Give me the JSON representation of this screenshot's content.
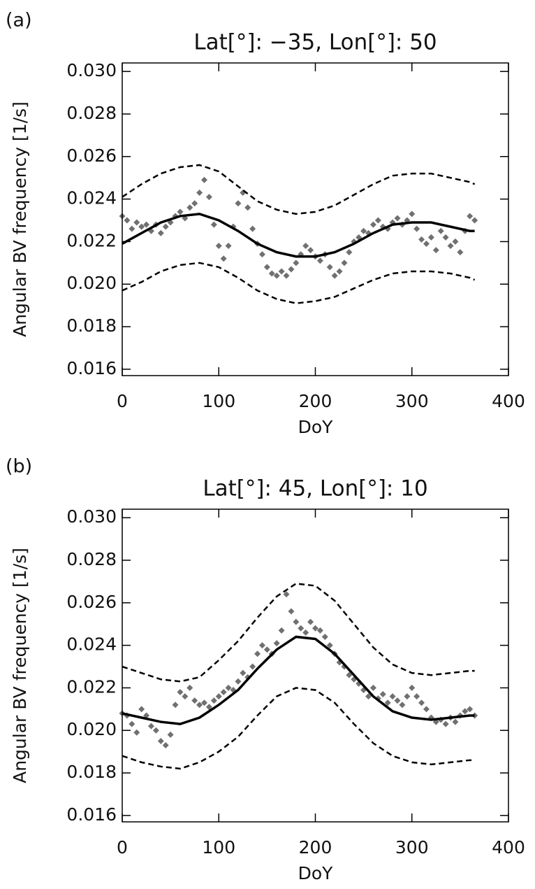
{
  "chart_data": [
    {
      "type": "scatter",
      "panel_label": "(a)",
      "title": "Lat[°]: −35, Lon[°]: 50",
      "x_label": "DoY",
      "y_label": "Angular BV frequency [1/s]",
      "xlim": [
        0,
        400
      ],
      "xticks": [
        0,
        100,
        200,
        300,
        400
      ],
      "ylim": [
        0.0157,
        0.0304
      ],
      "yticks": [
        {
          "value": 0.016,
          "label": "0.016"
        },
        {
          "value": 0.018,
          "label": "0.018"
        },
        {
          "value": 0.02,
          "label": "0.020"
        },
        {
          "value": 0.022,
          "label": "0.022"
        },
        {
          "value": 0.024,
          "label": "0.024"
        },
        {
          "value": 0.026,
          "label": "0.026"
        },
        {
          "value": 0.028,
          "label": "0.028"
        },
        {
          "value": 0.03,
          "label": "0.030"
        }
      ],
      "series": [
        {
          "kind": "points",
          "color": "#707070",
          "x": [
            0,
            5,
            10,
            15,
            20,
            25,
            30,
            35,
            40,
            45,
            50,
            55,
            60,
            65,
            70,
            75,
            80,
            85,
            90,
            95,
            100,
            105,
            110,
            115,
            120,
            125,
            130,
            135,
            140,
            145,
            150,
            155,
            160,
            165,
            170,
            175,
            180,
            185,
            190,
            195,
            200,
            205,
            210,
            215,
            220,
            225,
            230,
            235,
            240,
            245,
            250,
            255,
            260,
            265,
            270,
            275,
            280,
            285,
            290,
            295,
            300,
            305,
            310,
            315,
            320,
            325,
            330,
            335,
            340,
            345,
            350,
            355,
            360,
            365
          ],
          "values": [
            0.0232,
            0.023,
            0.0226,
            0.0229,
            0.0227,
            0.0228,
            0.0225,
            0.0228,
            0.0224,
            0.0227,
            0.0229,
            0.0232,
            0.0234,
            0.0231,
            0.0236,
            0.0238,
            0.0243,
            0.0249,
            0.0241,
            0.0228,
            0.0218,
            0.0212,
            0.0218,
            0.0227,
            0.0238,
            0.0243,
            0.0236,
            0.0226,
            0.0219,
            0.0214,
            0.0208,
            0.0205,
            0.0204,
            0.0206,
            0.0204,
            0.0207,
            0.021,
            0.0214,
            0.0218,
            0.0216,
            0.0213,
            0.0211,
            0.0214,
            0.0208,
            0.0204,
            0.0206,
            0.021,
            0.0215,
            0.022,
            0.0222,
            0.0225,
            0.0224,
            0.0228,
            0.023,
            0.0227,
            0.0226,
            0.0229,
            0.0231,
            0.0228,
            0.023,
            0.0233,
            0.0226,
            0.0221,
            0.0219,
            0.0222,
            0.0216,
            0.0225,
            0.0222,
            0.0218,
            0.022,
            0.0215,
            0.0225,
            0.0232,
            0.023
          ]
        },
        {
          "kind": "line",
          "color": "#000000",
          "dash": false,
          "x": [
            0,
            20,
            40,
            60,
            80,
            100,
            120,
            140,
            160,
            180,
            200,
            220,
            240,
            260,
            280,
            300,
            320,
            340,
            360,
            365
          ],
          "values": [
            0.0219,
            0.0224,
            0.0229,
            0.0232,
            0.0233,
            0.023,
            0.0225,
            0.0219,
            0.0215,
            0.0213,
            0.0213,
            0.0215,
            0.0219,
            0.0224,
            0.0228,
            0.0229,
            0.0229,
            0.0227,
            0.0225,
            0.0225
          ]
        },
        {
          "kind": "line",
          "color": "#000000",
          "dash": true,
          "x": [
            0,
            20,
            40,
            60,
            80,
            100,
            120,
            140,
            160,
            180,
            200,
            220,
            240,
            260,
            280,
            300,
            320,
            340,
            360,
            365
          ],
          "values": [
            0.0241,
            0.0247,
            0.0252,
            0.0255,
            0.0256,
            0.0253,
            0.0246,
            0.0239,
            0.0235,
            0.0233,
            0.0234,
            0.0237,
            0.0242,
            0.0247,
            0.0251,
            0.0252,
            0.0252,
            0.025,
            0.0248,
            0.0247
          ]
        },
        {
          "kind": "line",
          "color": "#000000",
          "dash": true,
          "x": [
            0,
            20,
            40,
            60,
            80,
            100,
            120,
            140,
            160,
            180,
            200,
            220,
            240,
            260,
            280,
            300,
            320,
            340,
            360,
            365
          ],
          "values": [
            0.0197,
            0.0201,
            0.0206,
            0.0209,
            0.021,
            0.0208,
            0.0203,
            0.0197,
            0.0193,
            0.0191,
            0.0192,
            0.0194,
            0.0198,
            0.0202,
            0.0205,
            0.0206,
            0.0206,
            0.0205,
            0.0203,
            0.0202
          ]
        }
      ]
    },
    {
      "type": "scatter",
      "panel_label": "(b)",
      "title": "Lat[°]: 45, Lon[°]: 10",
      "x_label": "DoY",
      "y_label": "Angular BV frequency [1/s]",
      "xlim": [
        0,
        400
      ],
      "xticks": [
        0,
        100,
        200,
        300,
        400
      ],
      "ylim": [
        0.0157,
        0.0304
      ],
      "yticks": [
        {
          "value": 0.016,
          "label": "0.016"
        },
        {
          "value": 0.018,
          "label": "0.018"
        },
        {
          "value": 0.02,
          "label": "0.020"
        },
        {
          "value": 0.022,
          "label": "0.022"
        },
        {
          "value": 0.024,
          "label": "0.024"
        },
        {
          "value": 0.026,
          "label": "0.026"
        },
        {
          "value": 0.028,
          "label": "0.028"
        },
        {
          "value": 0.03,
          "label": "0.030"
        }
      ],
      "series": [
        {
          "kind": "points",
          "color": "#707070",
          "x": [
            0,
            5,
            10,
            15,
            20,
            25,
            30,
            35,
            40,
            45,
            50,
            55,
            60,
            65,
            70,
            75,
            80,
            85,
            90,
            95,
            100,
            105,
            110,
            115,
            120,
            125,
            130,
            135,
            140,
            145,
            150,
            155,
            160,
            165,
            170,
            175,
            180,
            185,
            190,
            195,
            200,
            205,
            210,
            215,
            220,
            225,
            230,
            235,
            240,
            245,
            250,
            255,
            260,
            265,
            270,
            275,
            280,
            285,
            290,
            295,
            300,
            305,
            310,
            315,
            320,
            325,
            330,
            335,
            340,
            345,
            350,
            355,
            360,
            365
          ],
          "values": [
            0.0208,
            0.0207,
            0.0203,
            0.0199,
            0.021,
            0.0207,
            0.0202,
            0.02,
            0.0195,
            0.0193,
            0.0198,
            0.0212,
            0.0218,
            0.0216,
            0.022,
            0.0214,
            0.0212,
            0.0213,
            0.0211,
            0.0214,
            0.0216,
            0.0218,
            0.022,
            0.0219,
            0.0223,
            0.0227,
            0.0225,
            0.023,
            0.0236,
            0.024,
            0.0238,
            0.0236,
            0.0241,
            0.0247,
            0.0264,
            0.0256,
            0.0251,
            0.0248,
            0.0246,
            0.0251,
            0.0248,
            0.0247,
            0.0244,
            0.024,
            0.0236,
            0.0232,
            0.023,
            0.0226,
            0.0224,
            0.0222,
            0.0219,
            0.0216,
            0.022,
            0.0215,
            0.0217,
            0.0213,
            0.0216,
            0.0214,
            0.0212,
            0.0216,
            0.022,
            0.0216,
            0.0213,
            0.021,
            0.0206,
            0.0204,
            0.0205,
            0.0203,
            0.0206,
            0.0204,
            0.0207,
            0.0209,
            0.021,
            0.0207
          ]
        },
        {
          "kind": "line",
          "color": "#000000",
          "dash": false,
          "x": [
            0,
            20,
            40,
            60,
            80,
            100,
            120,
            140,
            160,
            180,
            200,
            220,
            240,
            260,
            280,
            300,
            320,
            340,
            360,
            365
          ],
          "values": [
            0.0208,
            0.0206,
            0.0204,
            0.0203,
            0.0206,
            0.0212,
            0.0219,
            0.0229,
            0.0238,
            0.0244,
            0.0243,
            0.0236,
            0.0226,
            0.0216,
            0.0209,
            0.0206,
            0.0205,
            0.0206,
            0.0207,
            0.0207
          ]
        },
        {
          "kind": "line",
          "color": "#000000",
          "dash": true,
          "x": [
            0,
            20,
            40,
            60,
            80,
            100,
            120,
            140,
            160,
            180,
            200,
            220,
            240,
            260,
            280,
            300,
            320,
            340,
            360,
            365
          ],
          "values": [
            0.023,
            0.0227,
            0.0224,
            0.0223,
            0.0225,
            0.0233,
            0.0242,
            0.0253,
            0.0263,
            0.0269,
            0.0268,
            0.0261,
            0.025,
            0.0239,
            0.0231,
            0.0227,
            0.0226,
            0.0227,
            0.0228,
            0.0228
          ]
        },
        {
          "kind": "line",
          "color": "#000000",
          "dash": true,
          "x": [
            0,
            20,
            40,
            60,
            80,
            100,
            120,
            140,
            160,
            180,
            200,
            220,
            240,
            260,
            280,
            300,
            320,
            340,
            360,
            365
          ],
          "values": [
            0.0188,
            0.0185,
            0.0183,
            0.0182,
            0.0185,
            0.019,
            0.0197,
            0.0207,
            0.0216,
            0.022,
            0.0219,
            0.0213,
            0.0203,
            0.0194,
            0.0188,
            0.0185,
            0.0184,
            0.0185,
            0.0186,
            0.0186
          ]
        }
      ]
    }
  ]
}
